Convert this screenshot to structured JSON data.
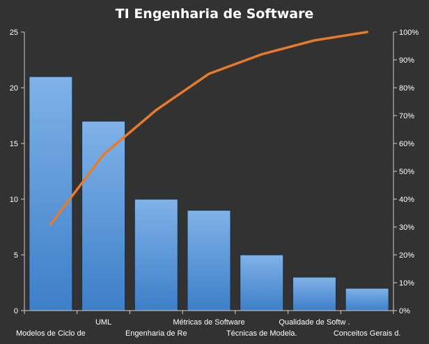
{
  "chart_data": {
    "type": "bar",
    "title": "TI Engenharia  de Software",
    "categories": [
      "Modelos de Ciclo de",
      "UML",
      "Engenharia de Re",
      "Métricas de Software",
      "Técnicas de Modela.",
      "Qualidade de Softw .",
      "Conceitos Gerais d."
    ],
    "series": [
      {
        "type": "bar",
        "axis": "left",
        "values": [
          21,
          17,
          10,
          9,
          5,
          3,
          2
        ]
      },
      {
        "type": "line",
        "axis": "right",
        "values": [
          31,
          56,
          72,
          85,
          92,
          97,
          100
        ]
      }
    ],
    "ylim": [
      0,
      25
    ],
    "y_ticks": [
      "0",
      "5",
      "10",
      "15",
      "20",
      "25"
    ],
    "y2lim": [
      0,
      100
    ],
    "y2_ticks": [
      "0%",
      "10%",
      "20%",
      "30%",
      "40%",
      "50%",
      "60%",
      "70%",
      "80%",
      "90%",
      "100%"
    ],
    "grid": false,
    "legend": "none",
    "colors": {
      "background": "#323232",
      "bar_top": "#7fb2e8",
      "bar_bottom": "#3d7fc8",
      "bar_edge": "#1c2f45",
      "line": "#e87a2c",
      "axis": "#d0d0d0",
      "text": "#ffffff"
    }
  }
}
